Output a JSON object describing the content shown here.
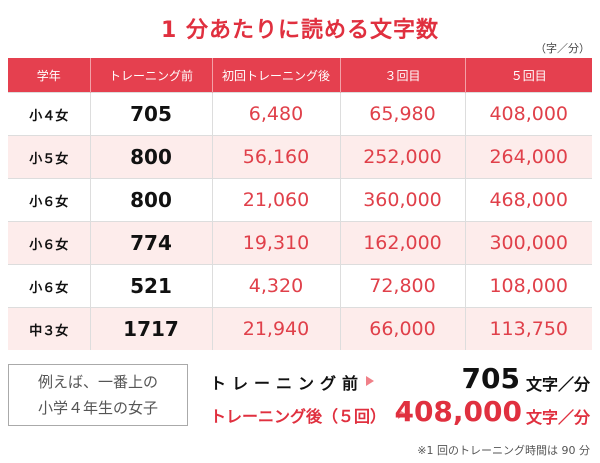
{
  "header": {
    "title": "1 分あたりに読める文字数",
    "unit": "（字／分）"
  },
  "table": {
    "columns": [
      "学年",
      "トレーニング前",
      "初回トレーニング後",
      "３回目",
      "５回目"
    ],
    "rows": [
      [
        "小４女",
        "705",
        "6,480",
        "65,980",
        "408,000"
      ],
      [
        "小５女",
        "800",
        "56,160",
        "252,000",
        "264,000"
      ],
      [
        "小６女",
        "800",
        "21,060",
        "360,000",
        "468,000"
      ],
      [
        "小６女",
        "774",
        "19,310",
        "162,000",
        "300,000"
      ],
      [
        "小６女",
        "521",
        "4,320",
        "72,800",
        "108,000"
      ],
      [
        "中３女",
        "1717",
        "21,940",
        "66,000",
        "113,750"
      ]
    ]
  },
  "example": {
    "lines": [
      "例えば、一番上の",
      "小学４年生の女子"
    ],
    "before": {
      "label": "トレーニング前",
      "value": "705",
      "unit": "文字／分"
    },
    "after": {
      "label": "トレーニング後（５回）",
      "value": "408,000",
      "unit": "文字／分"
    }
  },
  "footnote": "※1 回のトレーニング時間は 90 分"
}
